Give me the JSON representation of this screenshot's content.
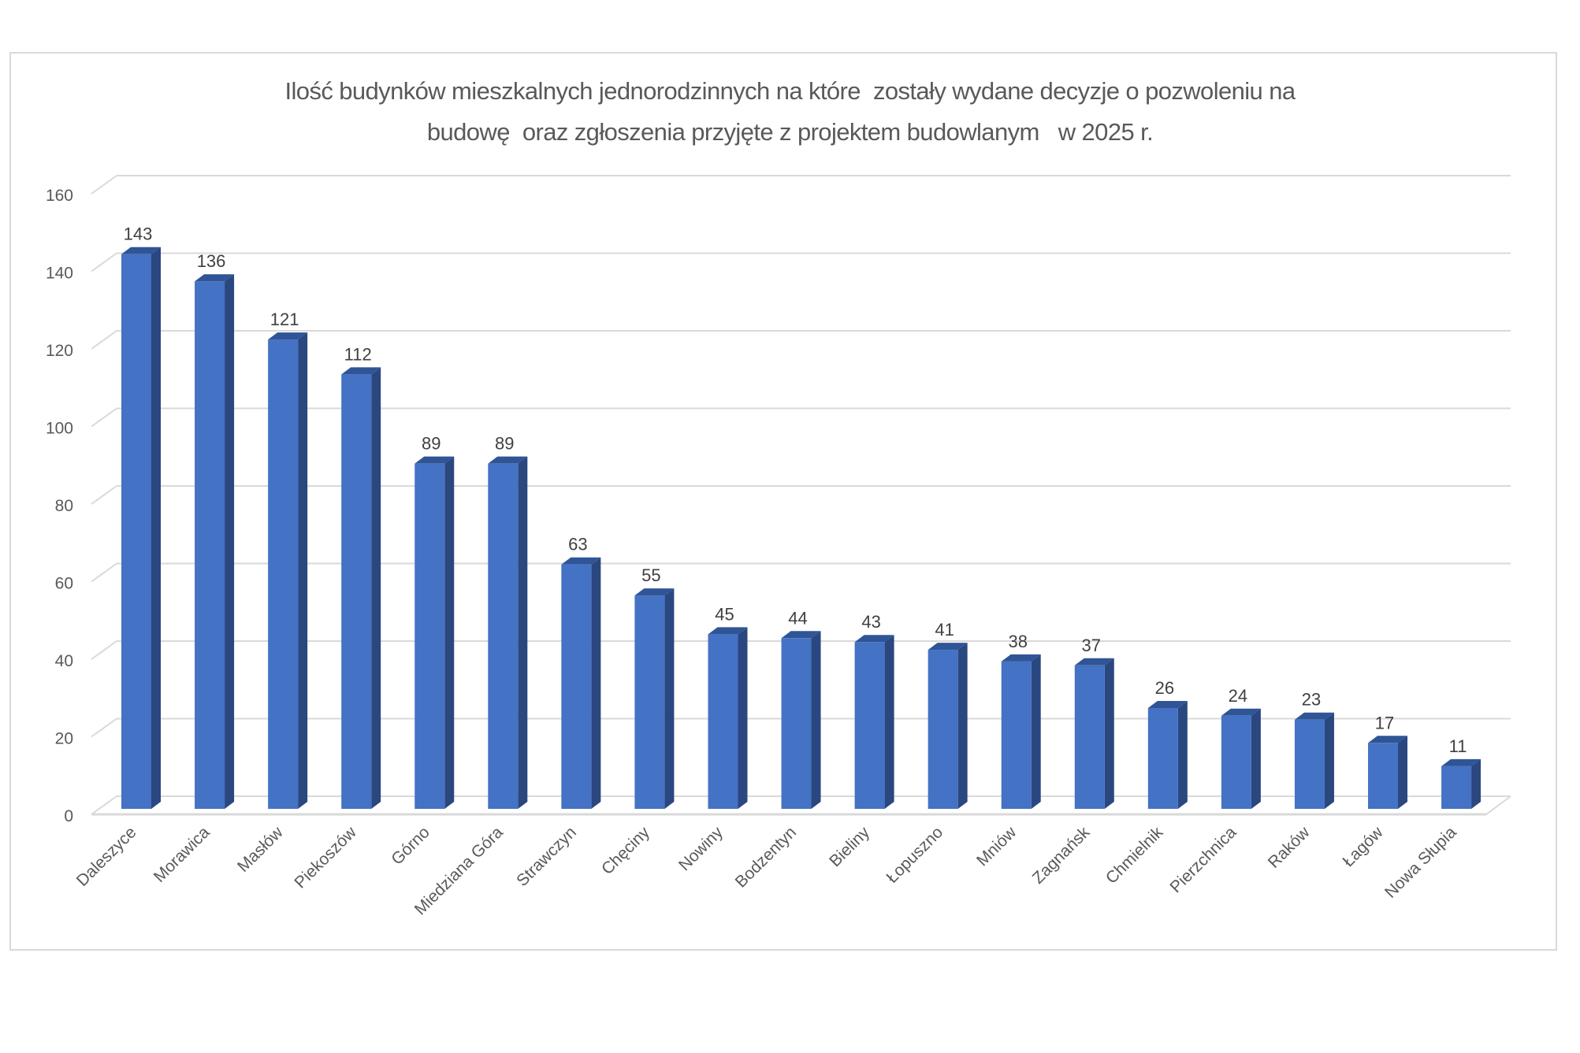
{
  "chart_data": {
    "type": "bar",
    "style": "3d-column",
    "title": "Ilość budynków mieszkalnych jednorodzinnych na które  zostały wydane decyzje o pozwoleniu na budowę  oraz zgłoszenia przyjęte z projektem budowlanym   w 2025 r.",
    "title_lines": [
      "Ilość budynków mieszkalnych jednorodzinnych na które  zostały wydane decyzje o pozwoleniu na",
      "budowę  oraz zgłoszenia przyjęte z projektem budowlanym   w 2025 r."
    ],
    "xlabel": "",
    "ylabel": "",
    "categories": [
      "Daleszyce",
      "Morawica",
      "Masłów",
      "Piekoszów",
      "Górno",
      "Miedziana Góra",
      "Strawczyn",
      "Chęciny",
      "Nowiny",
      "Bodzentyn",
      "Bieliny",
      "Łopuszno",
      "Mniów",
      "Zagnańsk",
      "Chmielnik",
      "Pierzchnica",
      "Raków",
      "Łagów",
      "Nowa Słupia"
    ],
    "values": [
      143,
      136,
      121,
      112,
      89,
      89,
      63,
      55,
      45,
      44,
      43,
      41,
      38,
      37,
      26,
      24,
      23,
      17,
      11
    ],
    "data_labels": true,
    "ylim": [
      0,
      160
    ],
    "yticks": [
      0,
      20,
      40,
      60,
      80,
      100,
      120,
      140,
      160
    ],
    "grid": true,
    "legend": null,
    "x_tick_rotation": -45,
    "colors": {
      "bar_front": "#4472C4",
      "bar_top": "#2F5597",
      "bar_side": "#2B4780",
      "grid": "#D9D9D9",
      "text": "#595959",
      "data_label": "#404040",
      "frame": "#D9D9D9"
    }
  }
}
